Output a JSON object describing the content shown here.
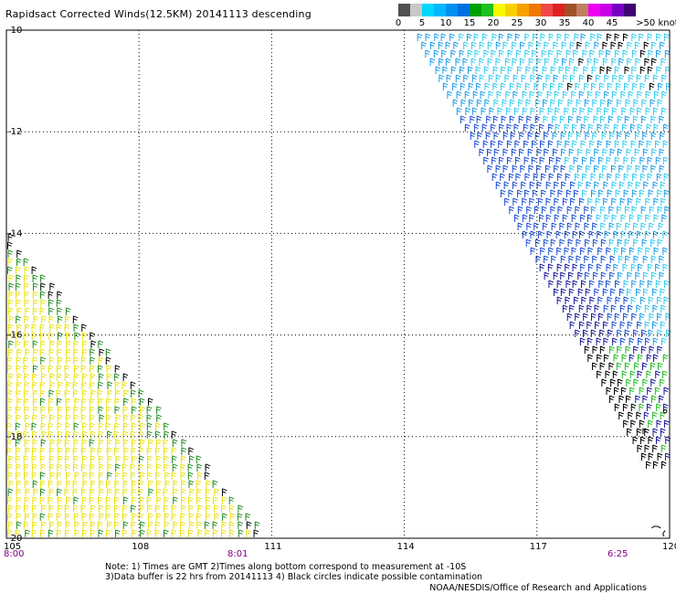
{
  "title": "Rapidsact Corrected Winds(12.5KM) 20141113 descending",
  "scale": {
    "colors": [
      "#505050",
      "#c8c8c8",
      "#00bfff",
      "#00a0f0",
      "#1c5ad8",
      "#0c9c0c",
      "#36d436",
      "#f8f820",
      "#f8c800",
      "#f89000",
      "#f86000",
      "#f03030",
      "#f05050",
      "#b06030",
      "#c08060",
      "#f000f0",
      "#a000d0",
      "#5a00a0",
      "#400070"
    ],
    "labels": [
      "0",
      "5",
      "10",
      "15",
      "20",
      "25",
      "30",
      "35",
      "40",
      "45",
      ">50 knots"
    ]
  },
  "axes": {
    "lat_labels": [
      "-10",
      "-12",
      "-14",
      "-16",
      "-18",
      "-20"
    ],
    "lon_labels": [
      "105",
      "108",
      "111",
      "114",
      "117",
      "120"
    ],
    "time_labels": [
      "8:00",
      "8:01",
      "6:25"
    ]
  },
  "notes": {
    "line1": "Note: 1) Times are GMT 2)Times along bottom correspond to measurement at -10S",
    "line2": "3)Data buffer is 22 hrs from 20141113 4) Black circles indicate possible contamination",
    "credit": "NOAA/NESDIS/Office of Research and Applications"
  },
  "swaths": [
    {
      "name": "western-swath",
      "colors": {
        "yellow": "#e8e000",
        "green": "#1a8a1a",
        "black": "#000000"
      }
    },
    {
      "name": "eastern-swath",
      "colors": {
        "cyan": "#33ccee",
        "lightblue": "#1e9ee8",
        "blue": "#1a4fd6",
        "navy": "#1a1a9a",
        "green": "#22bb22",
        "black": "#000000"
      }
    }
  ]
}
